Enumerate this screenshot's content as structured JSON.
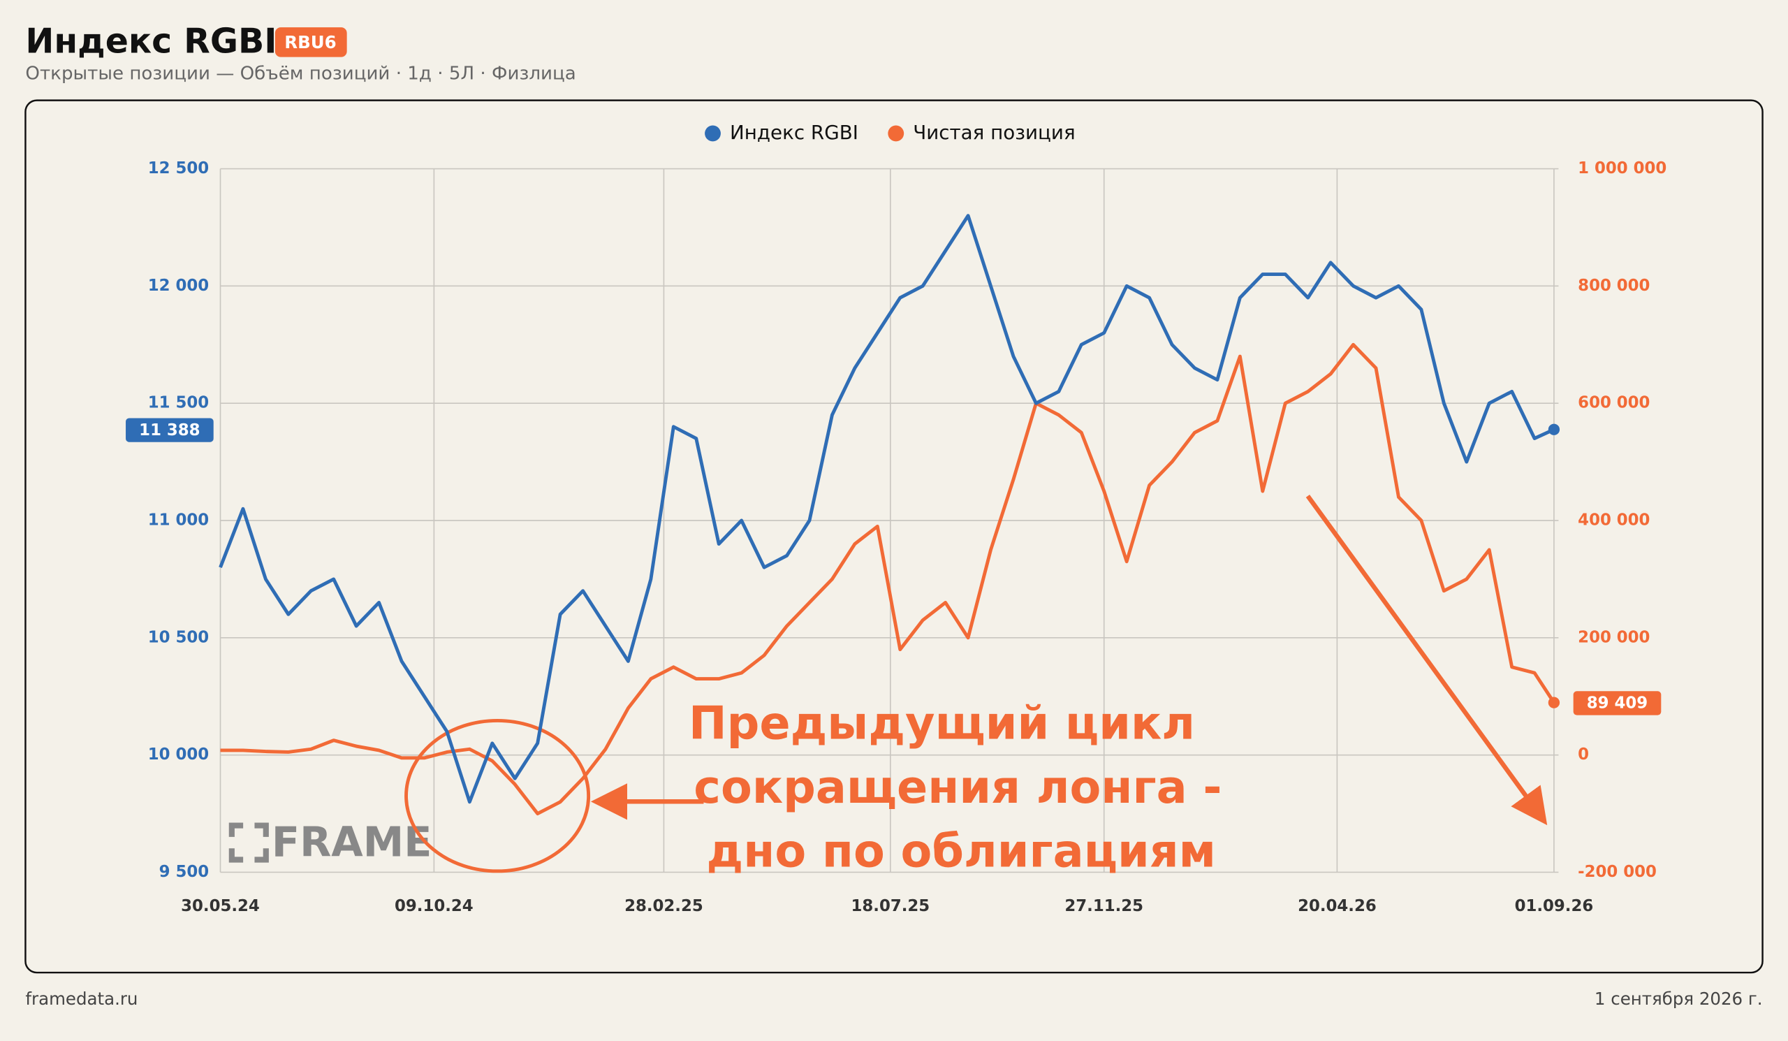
{
  "header": {
    "title": "Индекс RGBI",
    "badge": "RBU6",
    "subtitle": "Открытые позиции — Объём позиций · 1д · 5Л · Физлица"
  },
  "footer": {
    "source": "framedata.ru",
    "date": "1 сентября 2026 г."
  },
  "chart_data": {
    "type": "line",
    "watermark": "FRAME",
    "x": [
      "30.05.24",
      "13.06.24",
      "27.06.24",
      "11.07.24",
      "25.07.24",
      "08.08.24",
      "22.08.24",
      "05.09.24",
      "19.09.24",
      "03.10.24",
      "17.10.24",
      "31.10.24",
      "14.11.24",
      "28.11.24",
      "12.12.24",
      "26.12.24",
      "09.01.25",
      "23.01.25",
      "06.02.25",
      "20.02.25",
      "06.03.25",
      "20.03.25",
      "03.04.25",
      "17.04.25",
      "01.05.25",
      "15.05.25",
      "29.05.25",
      "12.06.25",
      "26.06.25",
      "10.07.25",
      "24.07.25",
      "07.08.25",
      "21.08.25",
      "04.09.25",
      "18.09.25",
      "02.10.25",
      "16.10.25",
      "30.10.25",
      "13.11.25",
      "27.11.25",
      "11.12.25",
      "25.12.25",
      "08.01.26",
      "22.01.26",
      "05.02.26",
      "19.02.26",
      "05.03.26",
      "19.03.26",
      "02.04.26",
      "16.04.26",
      "30.04.26",
      "14.05.26",
      "28.05.26",
      "11.06.26",
      "25.06.26",
      "09.07.26",
      "23.07.26",
      "06.08.26",
      "20.08.26",
      "01.09.26"
    ],
    "series": [
      {
        "name": "Индекс RGBI",
        "color": "#2f6db5",
        "axis": "y",
        "values": [
          10800,
          11050,
          10750,
          10600,
          10700,
          10750,
          10550,
          10650,
          10400,
          10250,
          10100,
          9800,
          10050,
          9900,
          10050,
          10600,
          10700,
          10550,
          10400,
          10750,
          11400,
          11350,
          10900,
          11000,
          10800,
          10850,
          11000,
          11450,
          11650,
          11800,
          11950,
          12000,
          12150,
          12300,
          12000,
          11700,
          11500,
          11550,
          11750,
          11800,
          12000,
          11950,
          11750,
          11650,
          11600,
          11950,
          12050,
          12050,
          11950,
          12100,
          12000,
          11950,
          12000,
          11900,
          11500,
          11250,
          11500,
          11550,
          11350,
          11388
        ],
        "value_labels": [
          null,
          null,
          null,
          null,
          null,
          null,
          null,
          null,
          null,
          null,
          null,
          null,
          null,
          null,
          null,
          null,
          null,
          null,
          null,
          null,
          null,
          null,
          null,
          null,
          null,
          null,
          null,
          null,
          null,
          null,
          null,
          null,
          null,
          null,
          null,
          null,
          null,
          null,
          null,
          null,
          null,
          null,
          null,
          null,
          null,
          null,
          null,
          null,
          null,
          null,
          null,
          null,
          null,
          null,
          null,
          null,
          null,
          null,
          null,
          "11 388"
        ]
      },
      {
        "name": "Чистая позиция",
        "color": "#f26a36",
        "axis": "y2",
        "values": [
          8000,
          8000,
          6000,
          5000,
          10000,
          25000,
          15000,
          8000,
          -5000,
          -5000,
          5000,
          10000,
          -10000,
          -50000,
          -100000,
          -80000,
          -40000,
          10000,
          80000,
          130000,
          150000,
          130000,
          130000,
          140000,
          170000,
          220000,
          260000,
          300000,
          360000,
          390000,
          180000,
          230000,
          260000,
          200000,
          350000,
          470000,
          600000,
          580000,
          550000,
          450000,
          330000,
          460000,
          500000,
          550000,
          570000,
          680000,
          450000,
          600000,
          620000,
          650000,
          700000,
          660000,
          440000,
          400000,
          280000,
          300000,
          350000,
          150000,
          140000,
          89409
        ],
        "value_labels": [
          null,
          null,
          null,
          null,
          null,
          null,
          null,
          null,
          null,
          null,
          null,
          null,
          null,
          null,
          null,
          null,
          null,
          null,
          null,
          null,
          null,
          null,
          null,
          null,
          null,
          null,
          null,
          null,
          null,
          null,
          null,
          null,
          null,
          null,
          null,
          null,
          null,
          null,
          null,
          null,
          null,
          null,
          null,
          null,
          null,
          null,
          null,
          null,
          null,
          null,
          null,
          null,
          null,
          null,
          null,
          null,
          null,
          null,
          null,
          "89 409"
        ]
      }
    ],
    "xlim": [
      "30.05.24",
      "01.09.26"
    ],
    "xticks": [
      "30.05.24",
      "09.10.24",
      "28.02.25",
      "18.07.25",
      "27.11.25",
      "20.04.26",
      "01.09.26"
    ],
    "ylim": [
      9500,
      12500
    ],
    "yticks": [
      {
        "value": 9500,
        "label": "9 500"
      },
      {
        "value": 10000,
        "label": "10 000"
      },
      {
        "value": 10500,
        "label": "10 500"
      },
      {
        "value": 11000,
        "label": "11 000"
      },
      {
        "value": 11500,
        "label": "11 500"
      },
      {
        "value": 12000,
        "label": "12 000"
      },
      {
        "value": 12500,
        "label": "12 500"
      }
    ],
    "y2lim": [
      -200000,
      1000000
    ],
    "y2ticks": [
      {
        "value": -200000,
        "label": "-200 000"
      },
      0,
      {
        "value": 200000,
        "label": "200 000"
      },
      {
        "value": 400000,
        "label": "400 000"
      },
      {
        "value": 600000,
        "label": "600 000"
      },
      {
        "value": 800000,
        "label": "800 000"
      },
      {
        "value": 1000000,
        "label": "1 000 000"
      }
    ],
    "grid": true,
    "legend": "top",
    "annotation": {
      "lines": [
        "Предыдущий цикл",
        "сокращения лонга -",
        "дно по облигациям"
      ],
      "color": "#f26a36"
    }
  }
}
